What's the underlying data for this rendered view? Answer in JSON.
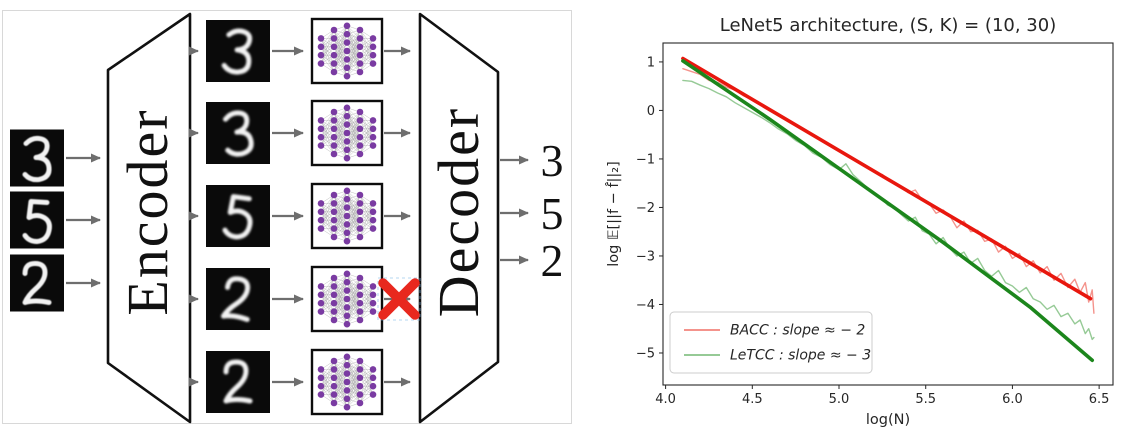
{
  "left_diagram": {
    "encoder_label": "Encoder",
    "decoder_label": "Decoder",
    "input_digits": [
      "3",
      "5",
      "2"
    ],
    "latent_digits": [
      "3",
      "3",
      "5",
      "2",
      "2"
    ],
    "output_digits": [
      "3",
      "5",
      "2"
    ],
    "crossed_out_row": 4,
    "icons": {
      "network_icon": "mlp-network-icon",
      "cross_icon": "red-cross-icon",
      "arrow_icon": "right-arrow-icon"
    },
    "colors": {
      "node_purple": "#7a3ba2",
      "edge_gray": "#b0b0b0",
      "cross_red": "#e8281e",
      "arrow_gray": "#6e6e6e",
      "frame_gray": "#d8d8d8",
      "tile_black": "#0a0a0a",
      "digit_white": "#f2f2f2"
    }
  },
  "chart_data": {
    "type": "line",
    "title": "LeNet5 architecture, (S, K) = (10, 30)",
    "xlabel": "log(N)",
    "ylabel": "log 𝔼[||f − f̂||₂]",
    "xlim": [
      3.985,
      6.58
    ],
    "ylim": [
      -5.66,
      1.39
    ],
    "xticks": [
      "4.0",
      "4.5",
      "5.0",
      "5.5",
      "6.0",
      "6.5"
    ],
    "yticks": [
      "1",
      "0",
      "−1",
      "−2",
      "−3",
      "−4",
      "−5"
    ],
    "grid": false,
    "legend": {
      "position": "lower left",
      "entries": [
        {
          "label": "BACC : slope ≈ − 2",
          "color": "#f4938c"
        },
        {
          "label": "LeTCC : slope ≈ − 3",
          "color": "#96ca96"
        }
      ]
    },
    "series": [
      {
        "name": "BACC_empirical",
        "color": "#f4938c",
        "width": 1.4,
        "points": [
          [
            4.1,
            0.86
          ],
          [
            4.15,
            0.8
          ],
          [
            4.2,
            0.74
          ],
          [
            4.25,
            0.62
          ],
          [
            4.3,
            0.58
          ],
          [
            4.35,
            0.48
          ],
          [
            4.4,
            0.42
          ],
          [
            4.45,
            0.3
          ],
          [
            4.5,
            0.22
          ],
          [
            4.55,
            0.12
          ],
          [
            4.6,
            0.02
          ],
          [
            4.65,
            -0.1
          ],
          [
            4.7,
            -0.2
          ],
          [
            4.75,
            -0.3
          ],
          [
            4.8,
            -0.42
          ],
          [
            4.85,
            -0.5
          ],
          [
            4.9,
            -0.62
          ],
          [
            4.95,
            -0.72
          ],
          [
            5.0,
            -0.84
          ],
          [
            5.05,
            -0.92
          ],
          [
            5.1,
            -1.05
          ],
          [
            5.15,
            -1.12
          ],
          [
            5.2,
            -1.27
          ],
          [
            5.25,
            -1.32
          ],
          [
            5.3,
            -1.48
          ],
          [
            5.35,
            -1.55
          ],
          [
            5.4,
            -1.7
          ],
          [
            5.44,
            -1.64
          ],
          [
            5.48,
            -1.85
          ],
          [
            5.52,
            -1.92
          ],
          [
            5.56,
            -2.12
          ],
          [
            5.6,
            -2.05
          ],
          [
            5.64,
            -2.18
          ],
          [
            5.68,
            -2.42
          ],
          [
            5.72,
            -2.28
          ],
          [
            5.76,
            -2.5
          ],
          [
            5.8,
            -2.47
          ],
          [
            5.84,
            -2.7
          ],
          [
            5.88,
            -2.65
          ],
          [
            5.92,
            -2.92
          ],
          [
            5.96,
            -2.8
          ],
          [
            6.0,
            -3.05
          ],
          [
            6.04,
            -2.95
          ],
          [
            6.08,
            -3.22
          ],
          [
            6.12,
            -3.1
          ],
          [
            6.16,
            -3.35
          ],
          [
            6.2,
            -3.22
          ],
          [
            6.24,
            -3.5
          ],
          [
            6.28,
            -3.36
          ],
          [
            6.32,
            -3.65
          ],
          [
            6.36,
            -3.48
          ],
          [
            6.39,
            -3.75
          ],
          [
            6.42,
            -3.55
          ],
          [
            6.44,
            -3.95
          ],
          [
            6.46,
            -3.7
          ],
          [
            6.47,
            -4.18
          ]
        ]
      },
      {
        "name": "LeTCC_empirical",
        "color": "#96ca96",
        "width": 1.4,
        "points": [
          [
            4.1,
            0.62
          ],
          [
            4.15,
            0.6
          ],
          [
            4.2,
            0.52
          ],
          [
            4.25,
            0.45
          ],
          [
            4.3,
            0.36
          ],
          [
            4.35,
            0.28
          ],
          [
            4.4,
            0.16
          ],
          [
            4.45,
            0.06
          ],
          [
            4.5,
            -0.04
          ],
          [
            4.55,
            -0.14
          ],
          [
            4.6,
            -0.25
          ],
          [
            4.65,
            -0.38
          ],
          [
            4.7,
            -0.48
          ],
          [
            4.75,
            -0.62
          ],
          [
            4.8,
            -0.72
          ],
          [
            4.85,
            -0.88
          ],
          [
            4.9,
            -0.97
          ],
          [
            4.95,
            -1.12
          ],
          [
            5.0,
            -1.22
          ],
          [
            5.04,
            -1.1
          ],
          [
            5.08,
            -1.32
          ],
          [
            5.12,
            -1.45
          ],
          [
            5.16,
            -1.58
          ],
          [
            5.2,
            -1.72
          ],
          [
            5.24,
            -1.8
          ],
          [
            5.28,
            -1.95
          ],
          [
            5.32,
            -2.02
          ],
          [
            5.36,
            -2.15
          ],
          [
            5.4,
            -2.28
          ],
          [
            5.44,
            -2.2
          ],
          [
            5.48,
            -2.48
          ],
          [
            5.52,
            -2.55
          ],
          [
            5.56,
            -2.75
          ],
          [
            5.6,
            -2.62
          ],
          [
            5.64,
            -2.85
          ],
          [
            5.68,
            -3.0
          ],
          [
            5.72,
            -2.92
          ],
          [
            5.76,
            -3.15
          ],
          [
            5.8,
            -3.05
          ],
          [
            5.84,
            -3.3
          ],
          [
            5.88,
            -3.42
          ],
          [
            5.92,
            -3.3
          ],
          [
            5.96,
            -3.55
          ],
          [
            6.0,
            -3.62
          ],
          [
            6.04,
            -3.75
          ],
          [
            6.08,
            -3.65
          ],
          [
            6.12,
            -3.88
          ],
          [
            6.16,
            -3.95
          ],
          [
            6.2,
            -4.1
          ],
          [
            6.24,
            -4.02
          ],
          [
            6.28,
            -4.25
          ],
          [
            6.32,
            -4.18
          ],
          [
            6.36,
            -4.4
          ],
          [
            6.39,
            -4.32
          ],
          [
            6.42,
            -4.6
          ],
          [
            6.44,
            -4.5
          ],
          [
            6.46,
            -4.72
          ],
          [
            6.47,
            -4.68
          ]
        ]
      },
      {
        "name": "BACC_fit",
        "color": "#e8170e",
        "width": 3.6,
        "points": [
          [
            4.1,
            1.07
          ],
          [
            6.45,
            -3.88
          ]
        ]
      },
      {
        "name": "LeTCC_fit",
        "color": "#1c861c",
        "width": 3.6,
        "points": [
          [
            4.1,
            1.02
          ],
          [
            4.6,
            -0.18
          ],
          [
            5.1,
            -1.45
          ],
          [
            5.6,
            -2.72
          ],
          [
            6.1,
            -4.05
          ],
          [
            6.46,
            -5.15
          ]
        ]
      }
    ]
  }
}
